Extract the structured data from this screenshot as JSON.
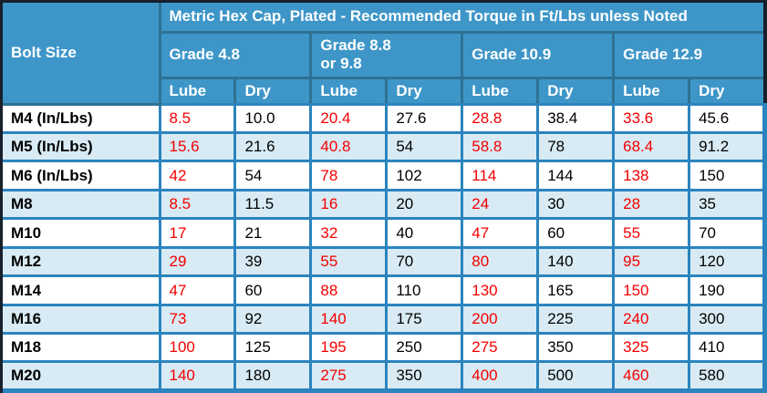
{
  "chart_data": {
    "type": "table",
    "title": "Metric Hex Cap, Plated - Recommended Torque in Ft/Lbs unless Noted",
    "row_header": "Bolt Size",
    "column_groups": [
      "Grade 4.8",
      "Grade 8.8 or 9.8",
      "Grade 10.9",
      "Grade 12.9"
    ],
    "sub_columns": [
      "Lube",
      "Dry"
    ],
    "rows": [
      {
        "bolt": "M4 (In/Lbs)",
        "values": [
          "8.5",
          "10.0",
          "20.4",
          "27.6",
          "28.8",
          "38.4",
          "33.6",
          "45.6"
        ]
      },
      {
        "bolt": "M5 (In/Lbs)",
        "values": [
          "15.6",
          "21.6",
          "40.8",
          "54",
          "58.8",
          "78",
          "68.4",
          "91.2"
        ]
      },
      {
        "bolt": "M6 (In/Lbs)",
        "values": [
          "42",
          "54",
          "78",
          "102",
          "114",
          "144",
          "138",
          "150"
        ]
      },
      {
        "bolt": "M8",
        "values": [
          "8.5",
          "11.5",
          "16",
          "20",
          "24",
          "30",
          "28",
          "35"
        ]
      },
      {
        "bolt": "M10",
        "values": [
          "17",
          "21",
          "32",
          "40",
          "47",
          "60",
          "55",
          "70"
        ]
      },
      {
        "bolt": "M12",
        "values": [
          "29",
          "39",
          "55",
          "70",
          "80",
          "140",
          "95",
          "120"
        ]
      },
      {
        "bolt": "M14",
        "values": [
          "47",
          "60",
          "88",
          "110",
          "130",
          "165",
          "150",
          "190"
        ]
      },
      {
        "bolt": "M16",
        "values": [
          "73",
          "92",
          "140",
          "175",
          "200",
          "225",
          "240",
          "300"
        ]
      },
      {
        "bolt": "M18",
        "values": [
          "100",
          "125",
          "195",
          "250",
          "275",
          "350",
          "325",
          "410"
        ]
      },
      {
        "bolt": "M20",
        "values": [
          "140",
          "180",
          "275",
          "350",
          "400",
          "500",
          "460",
          "580"
        ]
      }
    ]
  },
  "colors": {
    "header_bg": "#3E96C8",
    "header_border": "#2E7193",
    "grid": "#2B84BE",
    "row_alt": "#D8EBF4",
    "row_white": "#FFFFFF",
    "lube_text": "#F40000",
    "dry_text": "#000000",
    "header_text": "#FFFFFF",
    "frame": "#17202B"
  }
}
